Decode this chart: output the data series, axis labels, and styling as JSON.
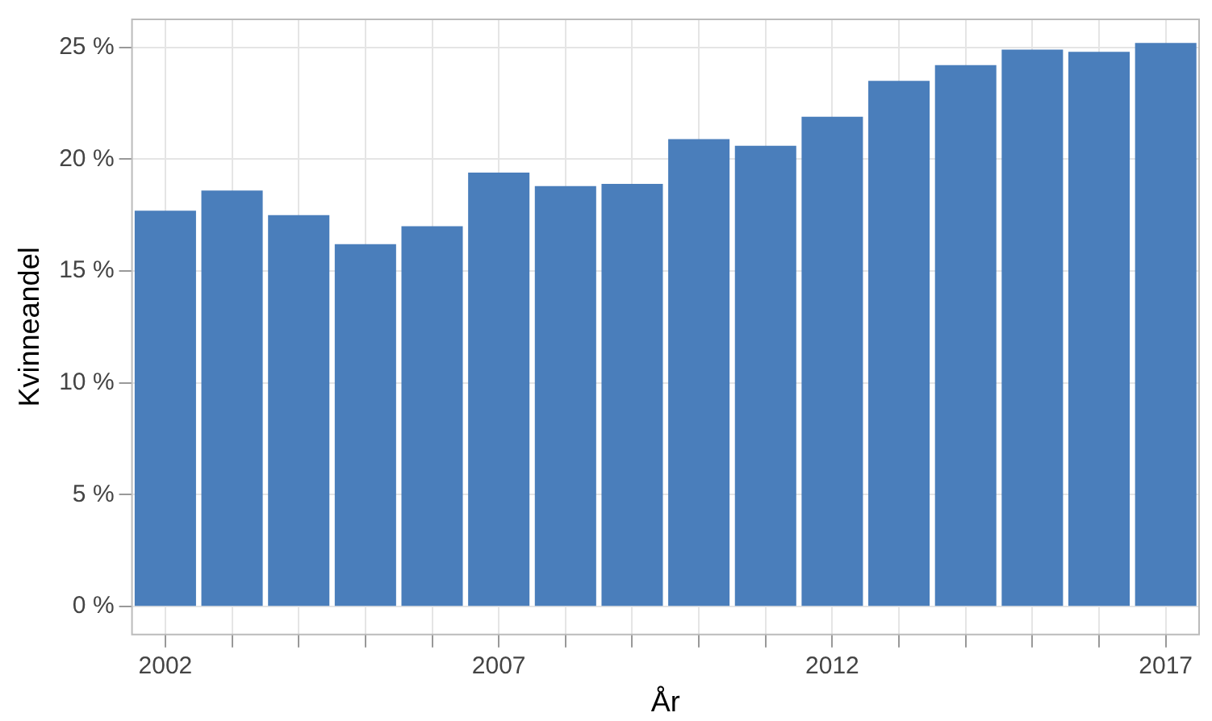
{
  "chart_data": {
    "type": "bar",
    "xlabel": "År",
    "ylabel": "Kvinneandel",
    "categories": [
      "2002",
      null,
      null,
      null,
      null,
      "2007",
      null,
      null,
      null,
      null,
      "2012",
      null,
      null,
      null,
      null,
      "2017"
    ],
    "values": [
      17.7,
      18.6,
      17.5,
      16.2,
      17.0,
      19.4,
      18.8,
      18.9,
      20.9,
      20.6,
      21.9,
      23.5,
      24.2,
      24.9,
      24.8,
      25.2
    ],
    "color": "#4a7ebb",
    "ylim": [
      -1.25,
      26.25
    ],
    "yticks": [
      {
        "value": 0,
        "label": "0 %"
      },
      {
        "value": 5,
        "label": "5 %"
      },
      {
        "value": 10,
        "label": "10 %"
      },
      {
        "value": 15,
        "label": "15 %"
      },
      {
        "value": 20,
        "label": "20 %"
      },
      {
        "value": 25,
        "label": "25 %"
      }
    ],
    "grid": true,
    "legend": false
  }
}
